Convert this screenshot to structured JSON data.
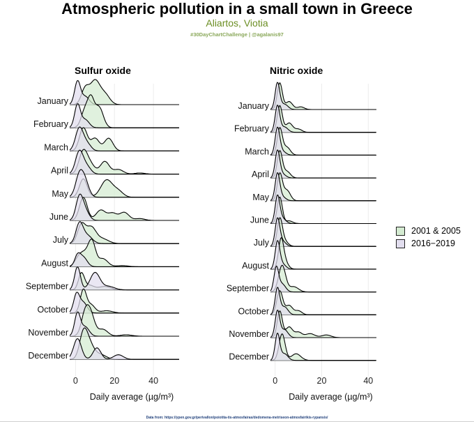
{
  "title": "Atmospheric pollution in a small town in Greece",
  "subtitle": "Aliartos, Viotia",
  "caption": "#30DayChartChallenge | @agalanis97",
  "footer": "Data from: https://ypen.gov.gr/perivallon/poiotita-tis-atmosfairas/dedomena-metriseon-atmosfairikis-rypansis/",
  "colors": {
    "period_2001_2005": "#d4ebd1",
    "period_2016_2019": "#e2deef",
    "overlap": "#cdd8cf",
    "line": "#000000"
  },
  "legend": {
    "items": [
      {
        "label": "2001 & 2005",
        "color": "#d4ebd1"
      },
      {
        "label": "2016−2019",
        "color": "#e2deef"
      }
    ]
  },
  "chart_data": [
    {
      "type": "area",
      "subtype": "ridgeline density",
      "title": "Sulfur oxide",
      "xlabel": "Daily average (µg/m³)",
      "xlim": [
        -3,
        55
      ],
      "xticks": [
        0,
        20,
        40
      ],
      "categories": [
        "January",
        "February",
        "March",
        "April",
        "May",
        "June",
        "July",
        "August",
        "September",
        "October",
        "November",
        "December"
      ],
      "series": [
        {
          "name": "2001 & 2005",
          "peaks": [
            [
              [
                5,
                0.7,
                2.0
              ],
              [
                10,
                1.0,
                2.4
              ],
              [
                15,
                0.45,
                2.5
              ]
            ],
            [
              [
                5,
                0.8,
                2.0
              ],
              [
                8,
                1.0,
                1.6
              ],
              [
                12,
                0.9,
                2.2
              ]
            ],
            [
              [
                4,
                1.0,
                2.0
              ],
              [
                10,
                0.55,
                2.2
              ],
              [
                17,
                0.55,
                2.2
              ]
            ],
            [
              [
                4,
                1.0,
                2.2
              ],
              [
                8,
                0.35,
                2.2
              ],
              [
                15,
                0.55,
                2.3
              ],
              [
                22,
                0.2,
                2.5
              ],
              [
                33,
                0.05,
                2.5
              ]
            ],
            [
              [
                4,
                0.8,
                2.0
              ],
              [
                16,
                0.75,
                3.0
              ],
              [
                22,
                0.25,
                2.5
              ]
            ],
            [
              [
                4,
                1.0,
                2.0
              ],
              [
                13,
                0.45,
                2.5
              ],
              [
                19,
                0.3,
                2.2
              ],
              [
                25,
                0.35,
                2.4
              ],
              [
                33,
                0.08,
                2.5
              ]
            ],
            [
              [
                3,
                0.8,
                2.0
              ],
              [
                8,
                0.7,
                2.5
              ],
              [
                14,
                0.2,
                3.0
              ]
            ],
            [
              [
                1.5,
                0.3,
                2.0
              ],
              [
                5,
                0.55,
                2.5
              ],
              [
                8.5,
                0.95,
                1.8
              ],
              [
                14,
                0.35,
                2.5
              ],
              [
                24,
                0.05,
                3.0
              ]
            ],
            [
              [
                3,
                0.7,
                1.5
              ],
              [
                7,
                0.2,
                2.5
              ],
              [
                15,
                0.15,
                3.0
              ]
            ],
            [
              [
                4,
                1.0,
                1.6
              ],
              [
                8,
                0.35,
                2.0
              ],
              [
                16,
                0.1,
                3.0
              ]
            ],
            [
              [
                5,
                1.0,
                2.0
              ],
              [
                8,
                0.8,
                2.0
              ],
              [
                14,
                0.3,
                2.5
              ],
              [
                26,
                0.06,
                3.0
              ]
            ],
            [
              [
                4,
                1.0,
                2.0
              ],
              [
                7,
                0.65,
                2.5
              ],
              [
                13,
                0.2,
                2.8
              ]
            ]
          ]
        },
        {
          "name": "2016−2019",
          "peaks": [
            [
              [
                1,
                1.0,
                1.5
              ],
              [
                5,
                0.35,
                2.0
              ]
            ],
            [
              [
                1,
                1.0,
                1.5
              ],
              [
                5,
                0.35,
                2.0
              ]
            ],
            [
              [
                2,
                1.0,
                2.0
              ],
              [
                6,
                0.3,
                2.0
              ]
            ],
            [
              [
                2,
                1.0,
                2.0
              ],
              [
                6,
                0.3,
                2.0
              ]
            ],
            [
              [
                2,
                0.95,
                2.0
              ],
              [
                5,
                0.6,
                2.0
              ]
            ],
            [
              [
                2,
                1.0,
                1.8
              ],
              [
                5,
                0.4,
                2.0
              ]
            ],
            [
              [
                2,
                0.85,
                1.8
              ],
              [
                6,
                0.35,
                2.5
              ]
            ],
            [
              [
                1,
                0.45,
                1.5
              ],
              [
                4,
                0.4,
                2.0
              ]
            ],
            [
              [
                1,
                1.0,
                1.5
              ],
              [
                10,
                0.75,
                2.5
              ],
              [
                17,
                0.15,
                3.0
              ]
            ],
            [
              [
                0.5,
                0.8,
                1.5
              ],
              [
                4,
                0.45,
                2.0
              ]
            ],
            [
              [
                1,
                1.0,
                1.5
              ],
              [
                5,
                0.4,
                2.0
              ]
            ],
            [
              [
                1,
                0.9,
                2.0
              ],
              [
                11,
                0.5,
                2.0
              ],
              [
                22,
                0.2,
                2.5
              ]
            ]
          ]
        }
      ]
    },
    {
      "type": "area",
      "subtype": "ridgeline density",
      "title": "Nitric oxide",
      "xlabel": "Daily average (µg/m³)",
      "xlim": [
        -2,
        45
      ],
      "xticks": [
        0,
        20,
        40
      ],
      "categories": [
        "January",
        "February",
        "March",
        "April",
        "May",
        "June",
        "July",
        "August",
        "September",
        "October",
        "November",
        "December"
      ],
      "series": [
        {
          "name": "2001 & 2005",
          "peaks": [
            [
              [
                2,
                1.0,
                1.1
              ],
              [
                6,
                0.3,
                1.5
              ],
              [
                11,
                0.1,
                1.5
              ]
            ],
            [
              [
                2,
                1.0,
                1.1
              ],
              [
                6,
                0.35,
                1.5
              ],
              [
                10,
                0.12,
                1.5
              ]
            ],
            [
              [
                2,
                1.0,
                1.1
              ],
              [
                5,
                0.3,
                1.5
              ]
            ],
            [
              [
                2,
                1.0,
                1.1
              ],
              [
                5,
                0.25,
                1.5
              ]
            ],
            [
              [
                2,
                1.0,
                1.1
              ],
              [
                5,
                0.4,
                1.5
              ]
            ],
            [
              [
                2,
                1.0,
                1.1
              ],
              [
                6,
                0.1,
                1.5
              ]
            ],
            [
              [
                2,
                1.0,
                1.1
              ],
              [
                4,
                0.2,
                1.5
              ]
            ],
            [
              [
                2.5,
                1.0,
                1.1
              ],
              [
                4,
                0.3,
                1.5
              ]
            ],
            [
              [
                3,
                1.0,
                1.5
              ],
              [
                8,
                0.2,
                2.0
              ]
            ],
            [
              [
                2,
                0.9,
                1.3
              ],
              [
                6,
                0.35,
                1.5
              ],
              [
                10,
                0.15,
                1.5
              ]
            ],
            [
              [
                2,
                1.0,
                1.1
              ],
              [
                6,
                0.4,
                1.5
              ],
              [
                10,
                0.2,
                1.5
              ],
              [
                15,
                0.15,
                2.0
              ],
              [
                22,
                0.1,
                2.0
              ]
            ],
            [
              [
                3,
                1.0,
                1.3
              ],
              [
                9,
                0.25,
                2.0
              ]
            ]
          ]
        },
        {
          "name": "2016−2019",
          "peaks": [
            [
              [
                1,
                1.0,
                1.0
              ],
              [
                4,
                0.2,
                1.5
              ]
            ],
            [
              [
                1,
                1.0,
                1.0
              ],
              [
                4,
                0.2,
                1.5
              ]
            ],
            [
              [
                1,
                1.0,
                1.0
              ],
              [
                3,
                0.15,
                1.5
              ]
            ],
            [
              [
                1,
                1.0,
                1.0
              ],
              [
                3,
                0.15,
                1.5
              ]
            ],
            [
              [
                1,
                1.0,
                1.0
              ],
              [
                3,
                0.15,
                1.5
              ]
            ],
            [
              [
                1,
                1.0,
                1.0
              ],
              [
                3,
                0.2,
                1.5
              ]
            ],
            [
              [
                1,
                1.0,
                1.0
              ],
              [
                3,
                0.2,
                1.5
              ]
            ],
            [
              [
                1,
                1.0,
                1.0
              ],
              [
                3,
                0.2,
                1.5
              ]
            ],
            [
              [
                0.5,
                0.9,
                1.0
              ],
              [
                3,
                0.3,
                1.5
              ]
            ],
            [
              [
                1,
                1.0,
                1.0
              ],
              [
                4,
                0.3,
                1.5
              ]
            ],
            [
              [
                1,
                1.0,
                1.0
              ],
              [
                4,
                0.3,
                1.5
              ]
            ],
            [
              [
                1,
                1.0,
                1.0
              ],
              [
                4,
                0.25,
                1.5
              ]
            ]
          ]
        }
      ]
    }
  ]
}
